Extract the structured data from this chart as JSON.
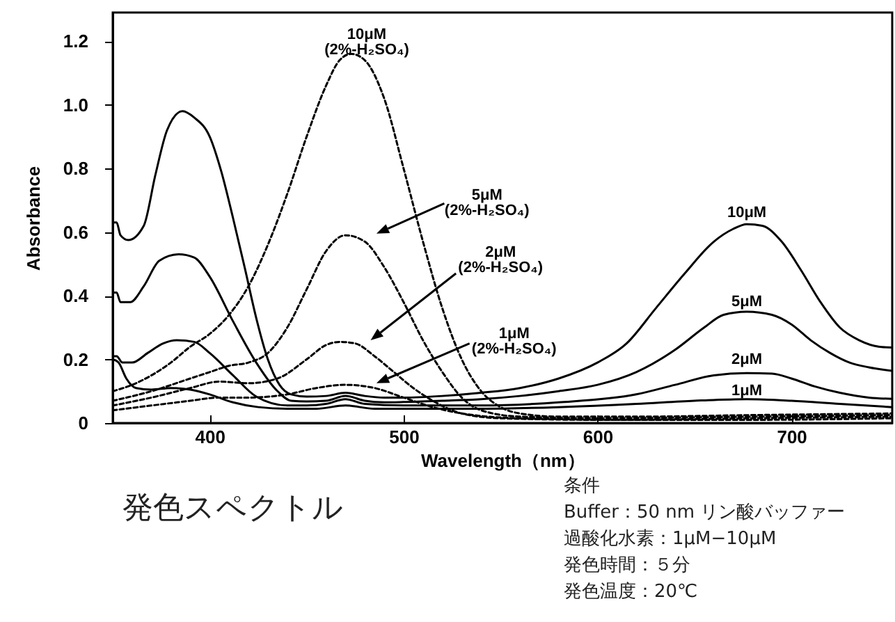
{
  "chart_data": {
    "type": "line",
    "title": "発色スペクトル",
    "xlabel": "Wavelength（nm）",
    "ylabel": "Absorbance",
    "annotations": [
      "条件",
      "Buffer：50 nm リン酸バッファー",
      "過酸化水素：1μM−10μM",
      "発色時間：５分",
      "発色温度：20℃"
    ],
    "xlim": [
      350,
      752
    ],
    "xticks": [
      400,
      500,
      600,
      700
    ],
    "ylim": [
      0,
      1.29
    ],
    "yticks": [
      0,
      0.2,
      0.4,
      0.6,
      0.8,
      {
        "value": 1,
        "label": "1.0"
      },
      1.2
    ],
    "series": [
      {
        "name": "10μM",
        "color": "#000000",
        "line_style": "solid",
        "x": [
          350,
          352,
          354,
          358,
          366,
          372,
          378,
          386,
          392,
          400,
          406,
          412,
          418,
          424,
          430,
          436,
          442,
          450,
          460,
          470,
          480,
          490,
          500,
          520,
          540,
          560,
          580,
          600,
          615,
          630,
          645,
          660,
          670,
          677,
          685,
          695,
          705,
          715,
          725,
          735,
          745,
          752
        ],
        "values": [
          0.63,
          0.63,
          0.59,
          0.575,
          0.62,
          0.78,
          0.92,
          0.98,
          0.96,
          0.9,
          0.79,
          0.645,
          0.49,
          0.33,
          0.2,
          0.12,
          0.09,
          0.083,
          0.085,
          0.095,
          0.085,
          0.08,
          0.08,
          0.085,
          0.095,
          0.11,
          0.14,
          0.19,
          0.25,
          0.36,
          0.47,
          0.57,
          0.61,
          0.625,
          0.62,
          0.57,
          0.48,
          0.38,
          0.3,
          0.26,
          0.24,
          0.237
        ]
      },
      {
        "name": "5μM",
        "color": "#000000",
        "line_style": "solid",
        "x": [
          350,
          352,
          354,
          359,
          366,
          374,
          384,
          392,
          400,
          412,
          424,
          435,
          442,
          450,
          460,
          470,
          480,
          490,
          500,
          520,
          540,
          560,
          580,
          600,
          620,
          640,
          655,
          665,
          677,
          690,
          700,
          710,
          720,
          730,
          740,
          752
        ],
        "values": [
          0.41,
          0.41,
          0.38,
          0.38,
          0.43,
          0.51,
          0.53,
          0.52,
          0.46,
          0.32,
          0.19,
          0.1,
          0.07,
          0.068,
          0.07,
          0.085,
          0.07,
          0.065,
          0.066,
          0.07,
          0.075,
          0.085,
          0.1,
          0.12,
          0.16,
          0.23,
          0.3,
          0.34,
          0.35,
          0.34,
          0.31,
          0.26,
          0.22,
          0.19,
          0.175,
          0.164
        ]
      },
      {
        "name": "2μM",
        "color": "#000000",
        "line_style": "solid",
        "x": [
          350,
          352,
          355,
          360,
          368,
          376,
          383,
          392,
          400,
          412,
          424,
          440,
          450,
          460,
          470,
          480,
          500,
          540,
          580,
          620,
          640,
          660,
          677,
          690,
          700,
          712,
          725,
          740,
          752
        ],
        "values": [
          0.21,
          0.21,
          0.19,
          0.19,
          0.22,
          0.25,
          0.26,
          0.255,
          0.22,
          0.15,
          0.083,
          0.055,
          0.055,
          0.06,
          0.075,
          0.06,
          0.055,
          0.055,
          0.065,
          0.09,
          0.12,
          0.15,
          0.157,
          0.155,
          0.14,
          0.115,
          0.095,
          0.08,
          0.076
        ]
      },
      {
        "name": "1μM",
        "color": "#000000",
        "line_style": "solid",
        "x": [
          350,
          353,
          357,
          362,
          370,
          380,
          390,
          400,
          412,
          425,
          440,
          455,
          470,
          485,
          500,
          540,
          580,
          620,
          650,
          677,
          700,
          725,
          752
        ],
        "values": [
          0.2,
          0.19,
          0.14,
          0.11,
          0.105,
          0.11,
          0.105,
          0.09,
          0.065,
          0.05,
          0.045,
          0.045,
          0.055,
          0.045,
          0.045,
          0.045,
          0.05,
          0.06,
          0.07,
          0.075,
          0.07,
          0.06,
          0.05
        ]
      },
      {
        "name": "10μM (2%-H₂SO₄)",
        "color": "#000000",
        "line_style": "dashed",
        "x": [
          350,
          360,
          370,
          380,
          390,
          400,
          410,
          420,
          430,
          440,
          450,
          460,
          467,
          473,
          480,
          490,
          500,
          510,
          520,
          530,
          540,
          550,
          560,
          580,
          620,
          680,
          752
        ],
        "values": [
          0.1,
          0.12,
          0.15,
          0.19,
          0.24,
          0.28,
          0.34,
          0.43,
          0.56,
          0.72,
          0.9,
          1.06,
          1.14,
          1.16,
          1.14,
          1.02,
          0.8,
          0.57,
          0.36,
          0.2,
          0.1,
          0.05,
          0.03,
          0.02,
          0.02,
          0.025,
          0.03
        ]
      },
      {
        "name": "5μM (2%-H₂SO₄)",
        "color": "#000000",
        "line_style": "dashed",
        "x": [
          350,
          370,
          390,
          400,
          410,
          420,
          430,
          440,
          450,
          460,
          470,
          480,
          490,
          500,
          510,
          520,
          530,
          540,
          560,
          600,
          680,
          752
        ],
        "values": [
          0.07,
          0.1,
          0.14,
          0.16,
          0.18,
          0.19,
          0.22,
          0.3,
          0.42,
          0.54,
          0.59,
          0.57,
          0.49,
          0.38,
          0.26,
          0.16,
          0.08,
          0.04,
          0.02,
          0.015,
          0.02,
          0.025
        ]
      },
      {
        "name": "2μM (2%-H₂SO₄)",
        "color": "#000000",
        "line_style": "dashed",
        "x": [
          350,
          370,
          390,
          405,
          420,
          435,
          450,
          460,
          467,
          475,
          485,
          495,
          505,
          515,
          530,
          550,
          600,
          680,
          752
        ],
        "values": [
          0.055,
          0.08,
          0.11,
          0.13,
          0.125,
          0.14,
          0.2,
          0.245,
          0.255,
          0.25,
          0.21,
          0.16,
          0.11,
          0.07,
          0.03,
          0.015,
          0.01,
          0.015,
          0.02
        ]
      },
      {
        "name": "1μM (2%-H₂SO₄)",
        "color": "#000000",
        "line_style": "dashed",
        "x": [
          350,
          370,
          390,
          405,
          420,
          440,
          455,
          470,
          485,
          500,
          515,
          530,
          560,
          620,
          680,
          752
        ],
        "values": [
          0.04,
          0.055,
          0.07,
          0.08,
          0.08,
          0.09,
          0.11,
          0.12,
          0.11,
          0.08,
          0.05,
          0.03,
          0.015,
          0.01,
          0.01,
          0.015
        ]
      }
    ]
  }
}
